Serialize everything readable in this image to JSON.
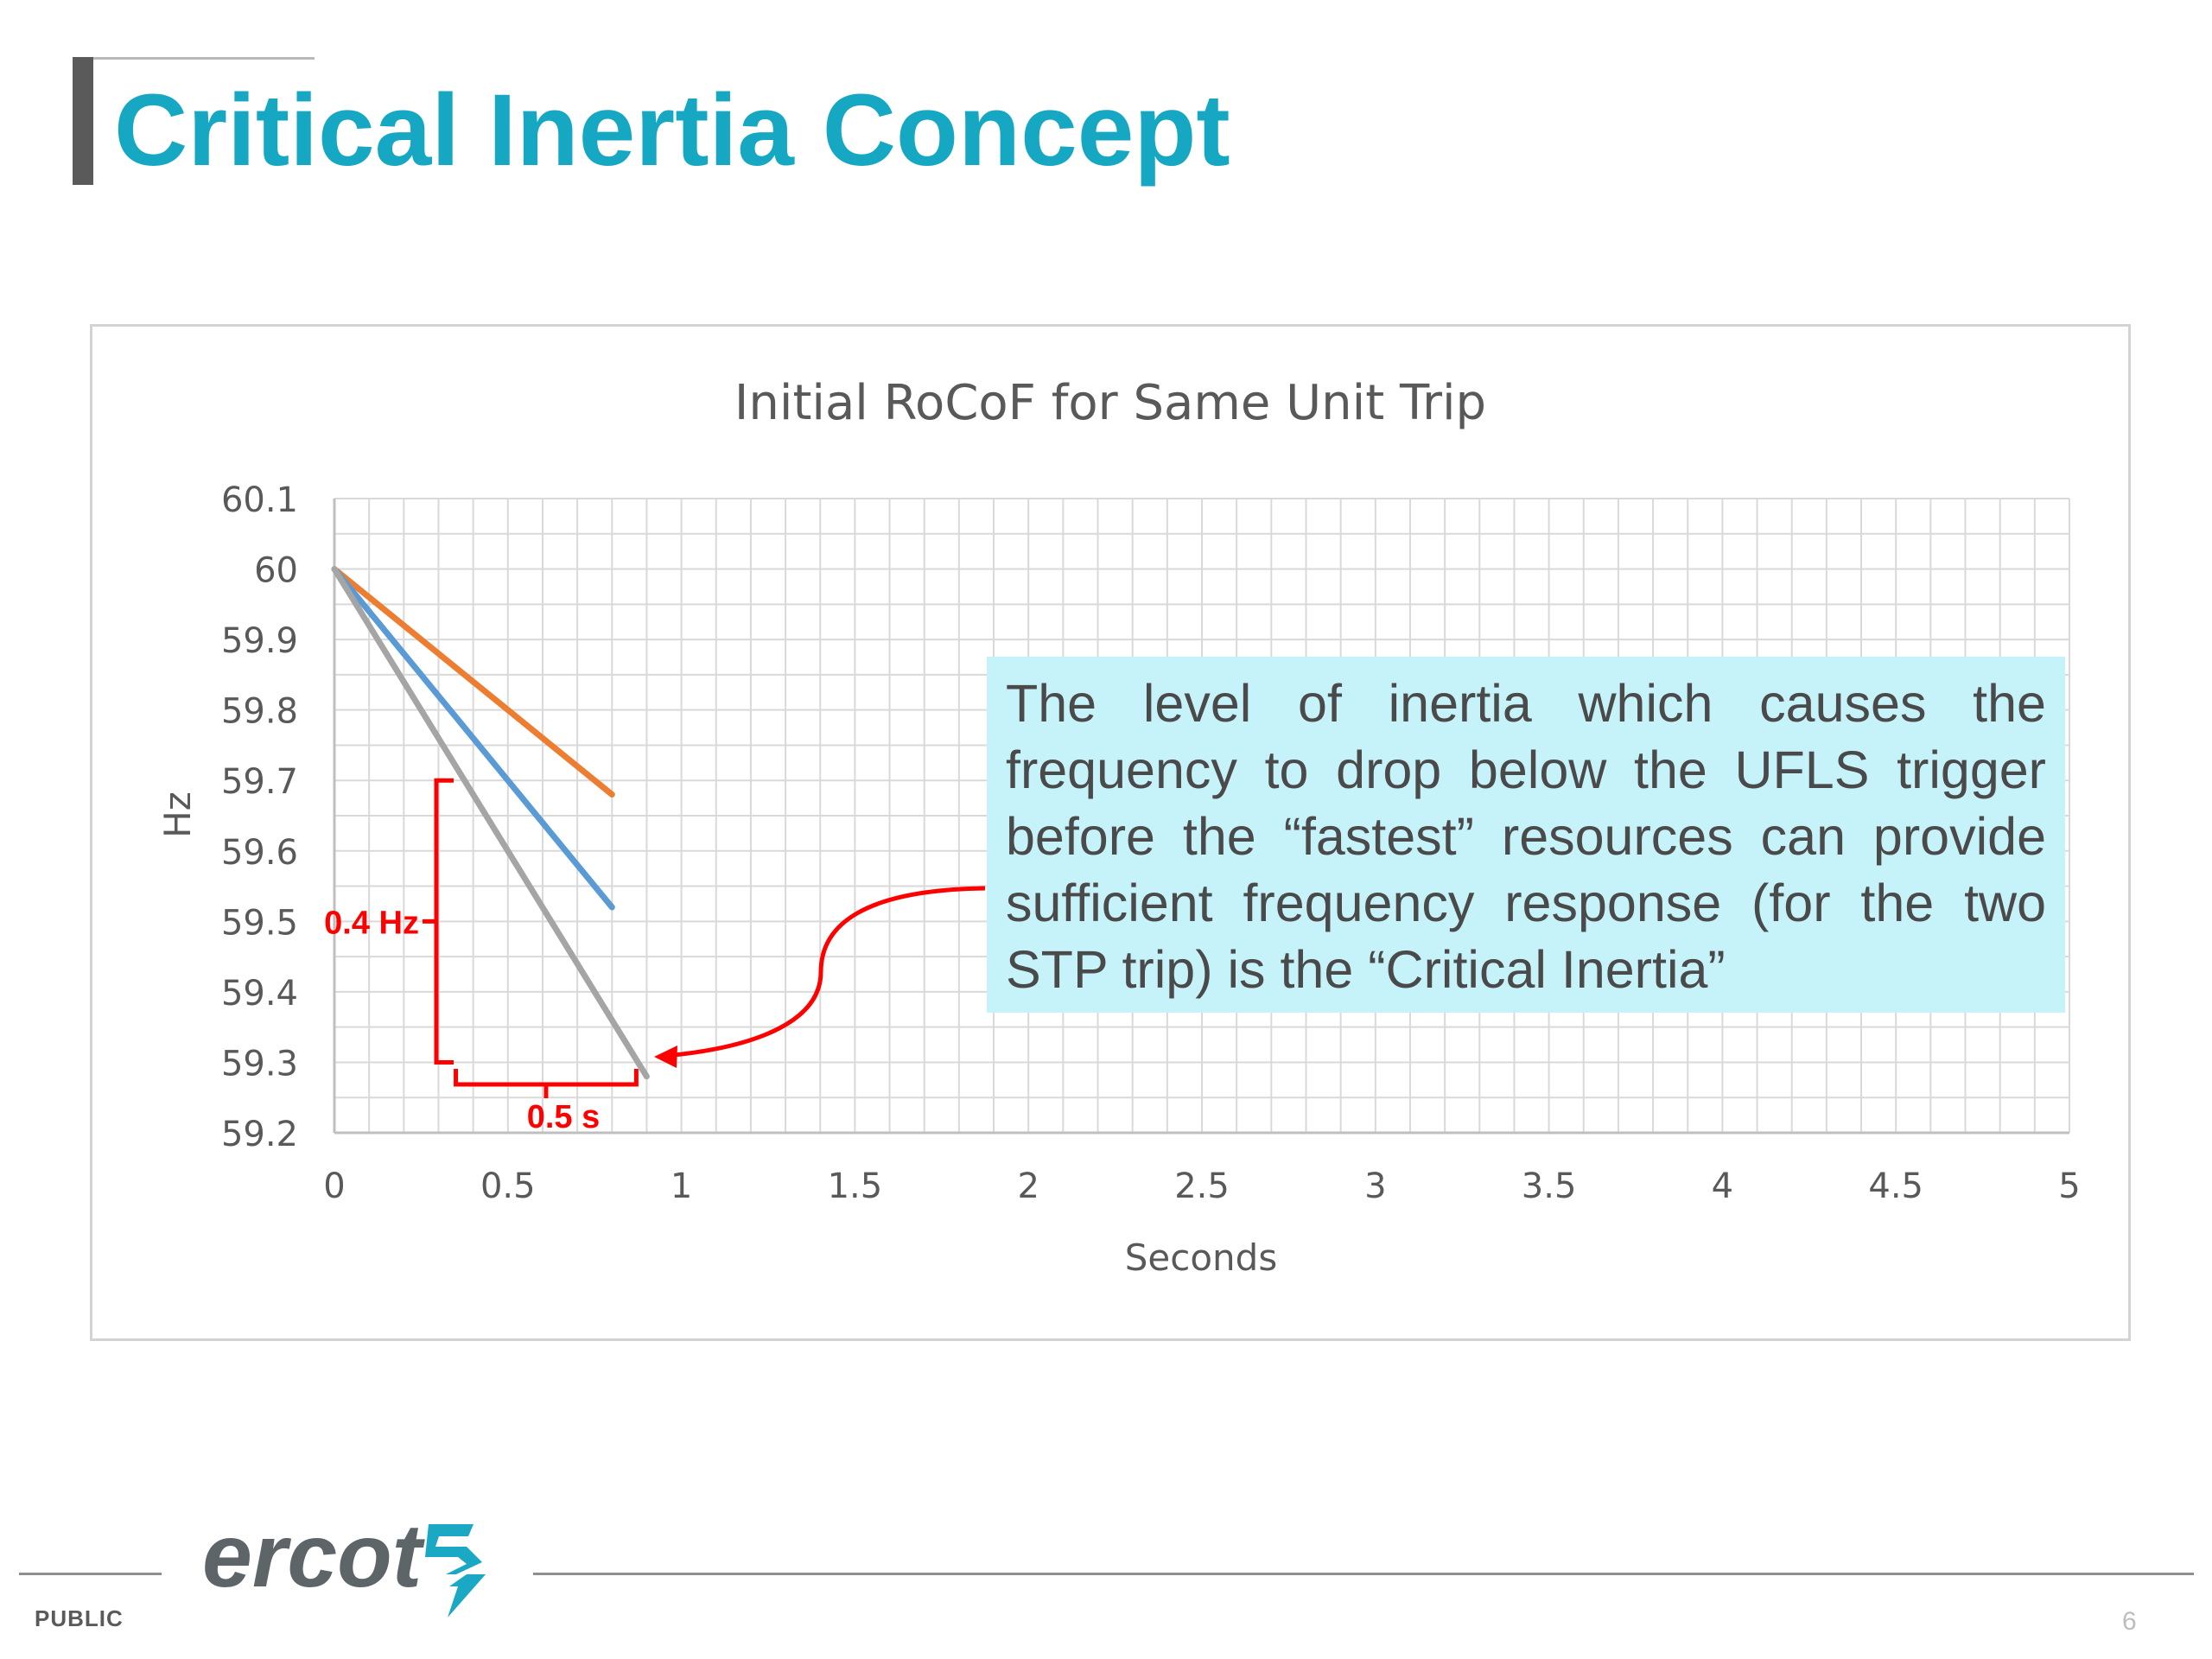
{
  "slide": {
    "title": "Critical Inertia Concept",
    "footer_label": "PUBLIC",
    "page_number": "6",
    "logo_text": "ercot"
  },
  "callout": {
    "text": "The level of inertia which causes the frequency to drop below the UFLS trigger before the “fastest” resources can provide sufficient frequency response (for the two STP trip) is the “Critical Inertia”"
  },
  "colors": {
    "title": "#16a8c2",
    "annotation": "#ff0000",
    "callout_bg": "#c6f2f9",
    "logo": "#5d6568",
    "logo_mark": "#1aa8c4"
  },
  "chart_data": {
    "type": "line",
    "title": "Initial RoCoF for Same Unit Trip",
    "xlabel": "Seconds",
    "ylabel": "Hz",
    "xlim": [
      0,
      5
    ],
    "ylim": [
      59.2,
      60.1
    ],
    "x_ticks": [
      0,
      0.5,
      1,
      1.5,
      2,
      2.5,
      3,
      3.5,
      4,
      4.5,
      5
    ],
    "x_tick_labels": [
      "0",
      "0.5",
      "1",
      "1.5",
      "2",
      "2.5",
      "3",
      "3.5",
      "4",
      "4.5",
      "5"
    ],
    "y_ticks": [
      59.2,
      59.3,
      59.4,
      59.5,
      59.6,
      59.7,
      59.8,
      59.9,
      60,
      60.1
    ],
    "y_tick_labels": [
      "59.2",
      "59.3",
      "59.4",
      "59.5",
      "59.6",
      "59.7",
      "59.8",
      "59.9",
      "60",
      "60.1"
    ],
    "grid": true,
    "minor_x_grid_step": 0.1,
    "minor_y_grid_step": 0.05,
    "legend": "none",
    "series": [
      {
        "color": "#ed7d31",
        "points": [
          [
            0,
            60
          ],
          [
            0.8,
            59.68
          ]
        ]
      },
      {
        "color": "#5b9bd5",
        "points": [
          [
            0,
            60
          ],
          [
            0.8,
            59.52
          ]
        ]
      },
      {
        "color": "#a5a5a5",
        "points": [
          [
            0,
            60
          ],
          [
            0.9,
            59.28
          ]
        ]
      }
    ],
    "annotations": {
      "delta_f_label": "0.4 Hz",
      "delta_f_range": [
        59.3,
        59.7
      ],
      "delta_t_label": "0.5 s",
      "delta_t_range": [
        0.35,
        0.87
      ]
    }
  }
}
